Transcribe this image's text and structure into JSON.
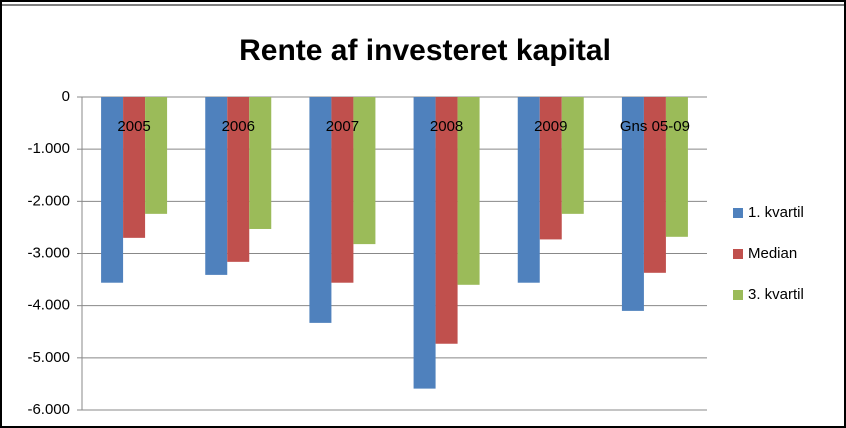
{
  "chart_data": {
    "type": "bar",
    "title": "Rente af investeret kapital",
    "categories": [
      "2005",
      "2006",
      "2007",
      "2008",
      "2009",
      "Gns 05-09"
    ],
    "series": [
      {
        "name": "1. kvartil",
        "color": "#4f81bd",
        "values": [
          -3560,
          -3410,
          -4330,
          -5590,
          -3560,
          -4100
        ]
      },
      {
        "name": "Median",
        "color": "#c0504d",
        "values": [
          -2700,
          -3160,
          -3560,
          -4730,
          -2730,
          -3370
        ]
      },
      {
        "name": "3. kvartil",
        "color": "#9bbb59",
        "values": [
          -2240,
          -2530,
          -2820,
          -3600,
          -2240,
          -2680
        ]
      }
    ],
    "ylim": [
      -6000,
      0
    ],
    "yticks": [
      0,
      {
        "value": -1000,
        "label": "-1.000"
      },
      {
        "value": -2000,
        "label": "-2.000"
      },
      {
        "value": -3000,
        "label": "-3.000"
      },
      {
        "value": -4000,
        "label": "-4.000"
      },
      {
        "value": -5000,
        "label": "-5.000"
      },
      {
        "value": -6000,
        "label": "-6.000"
      }
    ],
    "grid": true,
    "legend": "right"
  }
}
